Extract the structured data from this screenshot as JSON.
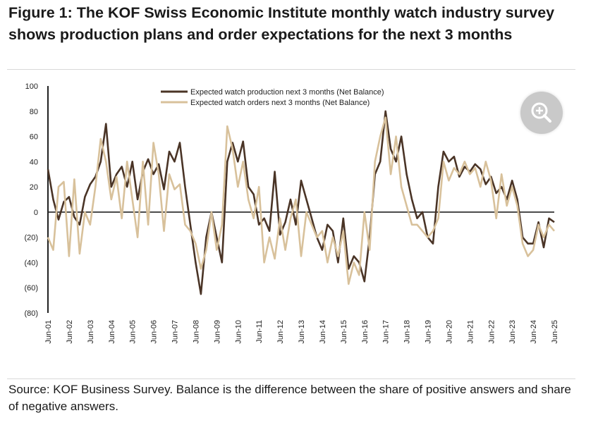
{
  "figure": {
    "title": "Figure 1: The KOF Swiss Economic Institute monthly watch industry survey shows production plans and order expectations for the next 3 months",
    "source": "Source: KOF Business Survey. Balance is the difference between the share of positive answers and share of negative answers."
  },
  "zoom_button": {
    "icon": "zoom-in-icon"
  },
  "chart_data": {
    "type": "line",
    "title": "",
    "xlabel": "",
    "ylabel": "",
    "ylim": [
      -80,
      100
    ],
    "yticks": [
      100,
      80,
      60,
      40,
      20,
      0,
      -20,
      -40,
      -60,
      -80
    ],
    "ytick_labels": [
      "100",
      "80",
      "60",
      "40",
      "20",
      "0",
      "(20)",
      "(40)",
      "(60)",
      "(80)"
    ],
    "xlim": [
      2001.42,
      2025.42
    ],
    "xtick_labels": [
      "Jun-01",
      "Jun-02",
      "Jun-03",
      "Jun-04",
      "Jun-05",
      "Jun-06",
      "Jun-07",
      "Jun-08",
      "Jun-09",
      "Jun-10",
      "Jun-11",
      "Jun-12",
      "Jun-13",
      "Jun-14",
      "Jun-15",
      "Jun-16",
      "Jun-17",
      "Jun-18",
      "Jun-19",
      "Jun-20",
      "Jun-21",
      "Jun-22",
      "Jun-23",
      "Jun-24",
      "Jun-25"
    ],
    "legend_position": "top-center",
    "series": [
      {
        "name": "Expected watch production next 3 months (Net Balance)",
        "color": "#4a3426",
        "x": [
          2001.42,
          2001.67,
          2001.92,
          2002.17,
          2002.42,
          2002.67,
          2002.92,
          2003.17,
          2003.42,
          2003.67,
          2003.92,
          2004.17,
          2004.42,
          2004.67,
          2004.92,
          2005.17,
          2005.42,
          2005.67,
          2005.92,
          2006.17,
          2006.42,
          2006.67,
          2006.92,
          2007.17,
          2007.42,
          2007.67,
          2007.92,
          2008.17,
          2008.42,
          2008.67,
          2008.92,
          2009.17,
          2009.42,
          2009.67,
          2009.92,
          2010.17,
          2010.42,
          2010.67,
          2010.92,
          2011.17,
          2011.42,
          2011.67,
          2011.92,
          2012.17,
          2012.42,
          2012.67,
          2012.92,
          2013.17,
          2013.42,
          2013.67,
          2013.92,
          2014.17,
          2014.42,
          2014.67,
          2014.92,
          2015.17,
          2015.42,
          2015.67,
          2015.92,
          2016.17,
          2016.42,
          2016.67,
          2016.92,
          2017.17,
          2017.42,
          2017.67,
          2017.92,
          2018.17,
          2018.42,
          2018.67,
          2018.92,
          2019.17,
          2019.42,
          2019.67,
          2019.92,
          2020.17,
          2020.42,
          2020.67,
          2020.92,
          2021.17,
          2021.42,
          2021.67,
          2021.92,
          2022.17,
          2022.42,
          2022.67,
          2022.92,
          2023.17,
          2023.42,
          2023.67,
          2023.92,
          2024.17,
          2024.42,
          2024.67,
          2024.92,
          2025.17,
          2025.42
        ],
        "y": [
          34,
          10,
          -6,
          8,
          12,
          -4,
          -10,
          12,
          22,
          28,
          40,
          70,
          20,
          30,
          36,
          20,
          40,
          10,
          32,
          42,
          30,
          38,
          18,
          48,
          40,
          55,
          20,
          -10,
          -40,
          -65,
          -20,
          0,
          -20,
          -40,
          40,
          55,
          40,
          56,
          20,
          14,
          -10,
          -5,
          -15,
          32,
          -18,
          -8,
          10,
          -10,
          25,
          10,
          -5,
          -20,
          -30,
          -10,
          -15,
          -40,
          -5,
          -45,
          -35,
          -40,
          -55,
          -20,
          30,
          40,
          80,
          50,
          40,
          60,
          30,
          10,
          -5,
          0,
          -20,
          -25,
          20,
          48,
          40,
          44,
          28,
          36,
          32,
          38,
          34,
          22,
          28,
          15,
          20,
          10,
          25,
          10,
          -20,
          -25,
          -25,
          -8,
          -28,
          -5,
          -8
        ]
      },
      {
        "name": "Expected watch orders next 3 months (Net Balance)",
        "color": "#d8c19b",
        "x": [
          2001.42,
          2001.67,
          2001.92,
          2002.17,
          2002.42,
          2002.67,
          2002.92,
          2003.17,
          2003.42,
          2003.67,
          2003.92,
          2004.17,
          2004.42,
          2004.67,
          2004.92,
          2005.17,
          2005.42,
          2005.67,
          2005.92,
          2006.17,
          2006.42,
          2006.67,
          2006.92,
          2007.17,
          2007.42,
          2007.67,
          2007.92,
          2008.17,
          2008.42,
          2008.67,
          2008.92,
          2009.17,
          2009.42,
          2009.67,
          2009.92,
          2010.17,
          2010.42,
          2010.67,
          2010.92,
          2011.17,
          2011.42,
          2011.67,
          2011.92,
          2012.17,
          2012.42,
          2012.67,
          2012.92,
          2013.17,
          2013.42,
          2013.67,
          2013.92,
          2014.17,
          2014.42,
          2014.67,
          2014.92,
          2015.17,
          2015.42,
          2015.67,
          2015.92,
          2016.17,
          2016.42,
          2016.67,
          2016.92,
          2017.17,
          2017.42,
          2017.67,
          2017.92,
          2018.17,
          2018.42,
          2018.67,
          2018.92,
          2019.17,
          2019.42,
          2019.67,
          2019.92,
          2020.17,
          2020.42,
          2020.67,
          2020.92,
          2021.17,
          2021.42,
          2021.67,
          2021.92,
          2022.17,
          2022.42,
          2022.67,
          2022.92,
          2023.17,
          2023.42,
          2023.67,
          2023.92,
          2024.17,
          2024.42,
          2024.67,
          2024.92,
          2025.17,
          2025.42
        ],
        "y": [
          -20,
          -30,
          20,
          24,
          -35,
          26,
          -33,
          0,
          -10,
          20,
          58,
          40,
          10,
          28,
          -5,
          40,
          10,
          -20,
          40,
          -10,
          55,
          30,
          -15,
          30,
          18,
          22,
          -10,
          -15,
          -25,
          -45,
          -30,
          0,
          -30,
          -10,
          68,
          50,
          20,
          40,
          10,
          -5,
          20,
          -40,
          -20,
          -37,
          -5,
          -30,
          -5,
          10,
          -35,
          0,
          -10,
          -20,
          -15,
          -40,
          -20,
          -35,
          -15,
          -57,
          -40,
          -50,
          0,
          -30,
          40,
          60,
          75,
          30,
          60,
          20,
          5,
          -10,
          -10,
          -15,
          -20,
          -15,
          -5,
          40,
          25,
          35,
          30,
          40,
          30,
          35,
          20,
          40,
          25,
          -5,
          30,
          5,
          20,
          5,
          -25,
          -35,
          -30,
          -10,
          -20,
          -10,
          -15
        ]
      }
    ]
  }
}
